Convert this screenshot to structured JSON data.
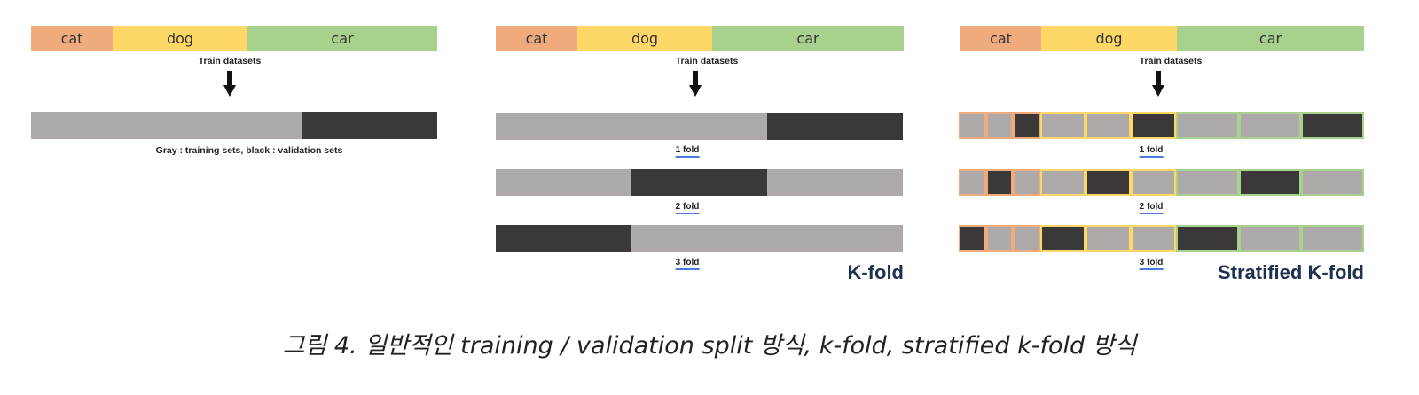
{
  "colors": {
    "cat": "#f0ab7d",
    "dog": "#fed866",
    "car": "#a9d18e",
    "training": "#aeaaaa",
    "validation": "#3a3838",
    "method_title": "#1f3050"
  },
  "classes": [
    {
      "label": "cat",
      "share": 0.2
    },
    {
      "label": "dog",
      "share": 0.33
    },
    {
      "label": "car",
      "share": 0.47
    }
  ],
  "train_datasets_label": "Train datasets",
  "panel_simple": {
    "validation_fraction": 0.33,
    "note": "Gray : training sets,   black : validation sets"
  },
  "panel_kfold": {
    "title": "K-fold",
    "folds": [
      {
        "label": "1 fold",
        "validation": [
          0.67,
          1.0
        ]
      },
      {
        "label": "2 fold",
        "validation": [
          0.33,
          0.67
        ]
      },
      {
        "label": "3 fold",
        "validation": [
          0.0,
          0.33
        ]
      }
    ]
  },
  "panel_stratified": {
    "title": "Stratified K-fold",
    "folds": [
      {
        "label": "1 fold",
        "validation_parts": [
          2,
          2,
          2
        ]
      },
      {
        "label": "2 fold",
        "validation_parts": [
          1,
          1,
          1
        ]
      },
      {
        "label": "3 fold",
        "validation_parts": [
          0,
          0,
          0
        ]
      }
    ]
  },
  "caption": "그림 4. 일반적인 training / validation split 방식, k-fold, stratified k-fold 방식"
}
